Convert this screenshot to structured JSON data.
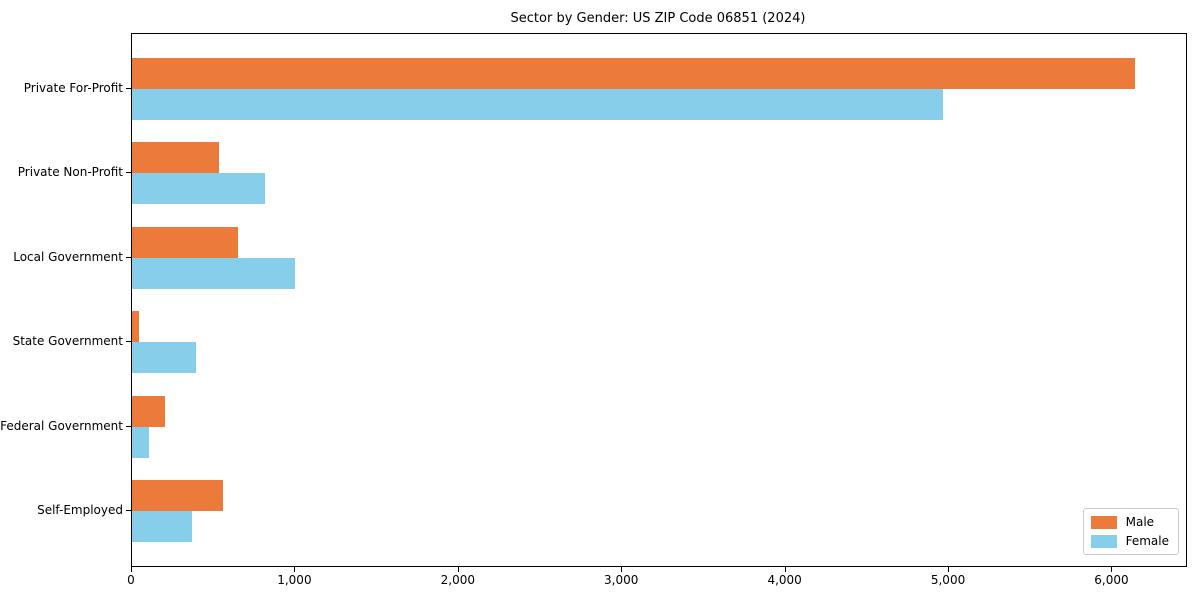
{
  "chart_data": {
    "type": "bar",
    "orientation": "horizontal",
    "title": "Sector by Gender: US ZIP Code 06851 (2024)",
    "categories": [
      "Private For-Profit",
      "Private Non-Profit",
      "Local Government",
      "State Government",
      "Federal Government",
      "Self-Employed"
    ],
    "series": [
      {
        "name": "Male",
        "color": "#eb7a3b",
        "values": [
          6140,
          535,
          650,
          40,
          200,
          555
        ]
      },
      {
        "name": "Female",
        "color": "#87ceeb",
        "values": [
          4965,
          815,
          1000,
          390,
          105,
          370
        ]
      }
    ],
    "xlabel": "",
    "ylabel": "",
    "xlim": [
      0,
      6450
    ],
    "xticks": [
      0,
      1000,
      2000,
      3000,
      4000,
      5000,
      6000
    ],
    "xtick_labels": [
      "0",
      "1,000",
      "2,000",
      "3,000",
      "4,000",
      "5,000",
      "6,000"
    ],
    "grid": false,
    "legend": {
      "position": "lower right",
      "entries": [
        "Male",
        "Female"
      ]
    },
    "colors": {
      "male": "#eb7a3b",
      "female": "#87ceeb",
      "spine": "#000000",
      "background": "#ffffff"
    }
  }
}
